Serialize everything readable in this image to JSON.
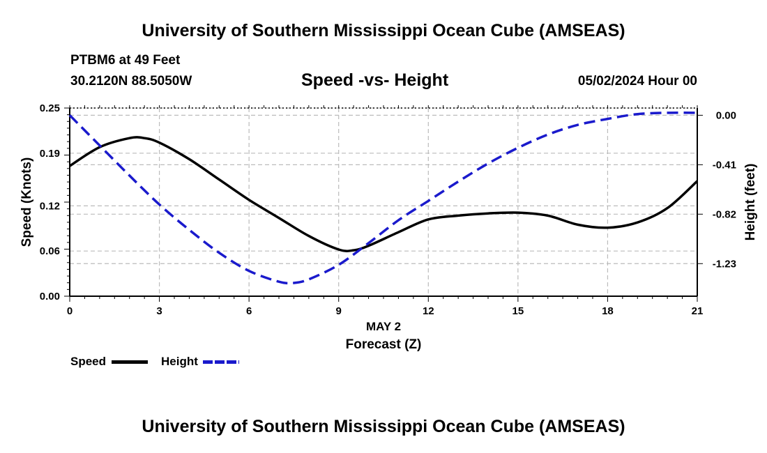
{
  "header": {
    "title": "University of Southern Mississippi Ocean Cube (AMSEAS)",
    "station": "PTBM6 at 49 Feet",
    "coords": "30.2120N  88.5050W",
    "subtitle": "Speed -vs- Height",
    "datetime": "05/02/2024 Hour 00"
  },
  "footer": {
    "title": "University of Southern Mississippi Ocean Cube (AMSEAS)"
  },
  "legend": {
    "speed_label": "Speed",
    "height_label": "Height"
  },
  "colors": {
    "speed": "#000000",
    "height": "#1a1acc",
    "grid": "#bbbbbb"
  },
  "chart_data": {
    "type": "line",
    "title": "Speed -vs- Height",
    "xlabel": "Forecast (Z)",
    "xlabel_date": "MAY 2",
    "ylabel": "Speed (Knots)",
    "y2label": "Height (feet)",
    "xlim": [
      0,
      21
    ],
    "ylim": [
      0,
      0.25
    ],
    "y2lim": [
      -1.5,
      0.06
    ],
    "x_ticks": [
      "0",
      "3",
      "6",
      "9",
      "12",
      "15",
      "18",
      "21"
    ],
    "y_ticks": [
      "0.00",
      "0.06",
      "0.12",
      "0.19",
      "0.25"
    ],
    "y2_ticks": [
      "0.00",
      "-0.41",
      "-0.82",
      "-1.23"
    ],
    "grid": true,
    "legend_position": "bottom-left",
    "series": [
      {
        "name": "Speed",
        "axis": "left",
        "style": "solid",
        "x": [
          0,
          1,
          2,
          2.5,
          3,
          4,
          5,
          6,
          7,
          8,
          9,
          9.5,
          10,
          11,
          12,
          13,
          14,
          15,
          16,
          17,
          18,
          19,
          20,
          21
        ],
        "values": [
          0.173,
          0.198,
          0.21,
          0.21,
          0.204,
          0.182,
          0.155,
          0.128,
          0.104,
          0.08,
          0.062,
          0.061,
          0.067,
          0.085,
          0.102,
          0.107,
          0.11,
          0.111,
          0.107,
          0.095,
          0.091,
          0.098,
          0.117,
          0.153
        ]
      },
      {
        "name": "Height",
        "axis": "right",
        "style": "dashed",
        "x": [
          0,
          1,
          2,
          3,
          4,
          5,
          6,
          7,
          7.5,
          8,
          9,
          10,
          11,
          12,
          13,
          14,
          15,
          16,
          17,
          18,
          19,
          20,
          21
        ],
        "values": [
          0.0,
          -0.25,
          -0.5,
          -0.74,
          -0.95,
          -1.14,
          -1.29,
          -1.38,
          -1.39,
          -1.36,
          -1.24,
          -1.06,
          -0.87,
          -0.71,
          -0.55,
          -0.4,
          -0.27,
          -0.16,
          -0.08,
          -0.03,
          0.01,
          0.02,
          0.02
        ]
      }
    ]
  }
}
